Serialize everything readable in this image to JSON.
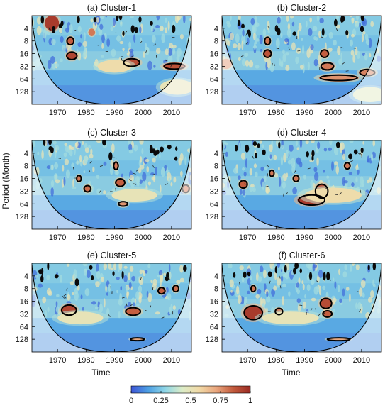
{
  "ylabel": "Period (Month)",
  "xlabel": "Time",
  "chart_data": [
    {
      "type": "heatmap",
      "title": "(a) Cluster-1",
      "x_ticks": [
        1970,
        1980,
        1990,
        2000,
        2010
      ],
      "y_ticks": [
        4,
        8,
        16,
        32,
        64,
        128
      ],
      "xlim": [
        1961,
        2017
      ],
      "ylim": [
        2,
        256
      ],
      "y_scale": "log2",
      "show_xlabel": false,
      "show_ylabel": false,
      "blobs": [
        {
          "x": 1968.0,
          "y": 3.0,
          "w": 2.5,
          "h": 0.6,
          "v": 0.95
        },
        {
          "x": 1974.5,
          "y": 8.0,
          "w": 1.4,
          "h": 0.35,
          "v": 0.85
        },
        {
          "x": 1982.0,
          "y": 5.0,
          "w": 1.2,
          "h": 0.3,
          "v": 0.8
        },
        {
          "x": 1975.0,
          "y": 18.0,
          "w": 2.0,
          "h": 0.35,
          "v": 0.92
        },
        {
          "x": 1996.0,
          "y": 26.0,
          "w": 3.0,
          "h": 0.35,
          "v": 0.9
        },
        {
          "x": 2011.0,
          "y": 32.0,
          "w": 4.0,
          "h": 0.3,
          "v": 0.88
        },
        {
          "x": 1990.0,
          "y": 32.0,
          "w": 6.0,
          "h": 0.5,
          "v": 0.55
        },
        {
          "x": 2012.0,
          "y": 100.0,
          "w": 6.0,
          "h": 0.6,
          "v": 0.5
        }
      ],
      "contours": [
        {
          "x": 1974.5,
          "y": 8.0,
          "w": 1.2,
          "h": 0.3
        },
        {
          "x": 1975.0,
          "y": 18.0,
          "w": 1.8,
          "h": 0.3
        },
        {
          "x": 1996.0,
          "y": 26.0,
          "w": 2.8,
          "h": 0.3
        },
        {
          "x": 2011.0,
          "y": 32.0,
          "w": 3.6,
          "h": 0.22
        }
      ]
    },
    {
      "type": "heatmap",
      "title": "(b) Cluster-2",
      "x_ticks": [
        1970,
        1980,
        1990,
        2000,
        2010
      ],
      "y_ticks": [
        4,
        8,
        16,
        32,
        64,
        128
      ],
      "xlim": [
        1961,
        2017
      ],
      "ylim": [
        2,
        256
      ],
      "y_scale": "log2",
      "show_xlabel": false,
      "show_ylabel": false,
      "blobs": [
        {
          "x": 1977.0,
          "y": 8.0,
          "w": 1.2,
          "h": 0.35,
          "v": 0.8
        },
        {
          "x": 1977.0,
          "y": 16.0,
          "w": 1.5,
          "h": 0.35,
          "v": 0.88
        },
        {
          "x": 1997.0,
          "y": 16.0,
          "w": 1.6,
          "h": 0.35,
          "v": 0.85
        },
        {
          "x": 1998.0,
          "y": 32.0,
          "w": 2.5,
          "h": 0.35,
          "v": 0.8
        },
        {
          "x": 2002.0,
          "y": 60.0,
          "w": 7.0,
          "h": 0.3,
          "v": 0.75
        },
        {
          "x": 2012.0,
          "y": 45.0,
          "w": 3.0,
          "h": 0.3,
          "v": 0.78
        },
        {
          "x": 1962.5,
          "y": 28.0,
          "w": 2.0,
          "h": 0.4,
          "v": 0.75
        },
        {
          "x": 2013.0,
          "y": 150.0,
          "w": 6.0,
          "h": 0.6,
          "v": 0.45
        }
      ],
      "contours": [
        {
          "x": 1977.0,
          "y": 8.0,
          "w": 1.0,
          "h": 0.3
        },
        {
          "x": 1977.0,
          "y": 16.0,
          "w": 1.3,
          "h": 0.3
        },
        {
          "x": 1997.0,
          "y": 16.0,
          "w": 1.4,
          "h": 0.3
        },
        {
          "x": 1998.0,
          "y": 32.0,
          "w": 2.2,
          "h": 0.28
        },
        {
          "x": 2002.0,
          "y": 60.0,
          "w": 6.5,
          "h": 0.22
        },
        {
          "x": 2012.0,
          "y": 45.0,
          "w": 2.6,
          "h": 0.25
        }
      ]
    },
    {
      "type": "heatmap",
      "title": "(c) Cluster-3",
      "x_ticks": [
        1970,
        1980,
        1990,
        2000,
        2010
      ],
      "y_ticks": [
        4,
        8,
        16,
        32,
        64,
        128
      ],
      "xlim": [
        1961,
        2017
      ],
      "ylim": [
        2,
        256
      ],
      "y_scale": "log2",
      "show_xlabel": false,
      "show_ylabel": true,
      "blobs": [
        {
          "x": 1977.5,
          "y": 16.0,
          "w": 1.0,
          "h": 0.3,
          "v": 0.8
        },
        {
          "x": 1980.5,
          "y": 28.0,
          "w": 1.4,
          "h": 0.3,
          "v": 0.82
        },
        {
          "x": 1990.5,
          "y": 8.0,
          "w": 1.0,
          "h": 0.35,
          "v": 0.8
        },
        {
          "x": 1992.0,
          "y": 20.0,
          "w": 1.8,
          "h": 0.35,
          "v": 0.85
        },
        {
          "x": 1993.0,
          "y": 64.0,
          "w": 1.8,
          "h": 0.25,
          "v": 0.75
        },
        {
          "x": 2015.0,
          "y": 28.0,
          "w": 1.6,
          "h": 0.35,
          "v": 0.8
        },
        {
          "x": 1997.0,
          "y": 40.0,
          "w": 8.0,
          "h": 0.5,
          "v": 0.5
        }
      ],
      "contours": [
        {
          "x": 1977.5,
          "y": 16.0,
          "w": 0.8,
          "h": 0.25
        },
        {
          "x": 1980.5,
          "y": 28.0,
          "w": 1.2,
          "h": 0.25
        },
        {
          "x": 1990.5,
          "y": 8.0,
          "w": 0.8,
          "h": 0.3
        },
        {
          "x": 1992.0,
          "y": 20.0,
          "w": 1.6,
          "h": 0.3
        },
        {
          "x": 1993.0,
          "y": 64.0,
          "w": 1.6,
          "h": 0.18
        },
        {
          "x": 2015.0,
          "y": 28.0,
          "w": 1.2,
          "h": 0.3
        }
      ]
    },
    {
      "type": "heatmap",
      "title": "(d) Cluster-4",
      "x_ticks": [
        1970,
        1980,
        1990,
        2000,
        2010
      ],
      "y_ticks": [
        4,
        8,
        16,
        32,
        64,
        128
      ],
      "xlim": [
        1961,
        2017
      ],
      "ylim": [
        2,
        256
      ],
      "y_scale": "log2",
      "show_xlabel": false,
      "show_ylabel": false,
      "blobs": [
        {
          "x": 1968.5,
          "y": 22.0,
          "w": 1.6,
          "h": 0.35,
          "v": 0.85
        },
        {
          "x": 1978.5,
          "y": 12.0,
          "w": 1.0,
          "h": 0.3,
          "v": 0.8
        },
        {
          "x": 1987.0,
          "y": 16.0,
          "w": 1.2,
          "h": 0.3,
          "v": 0.8
        },
        {
          "x": 1992.5,
          "y": 52.0,
          "w": 5.0,
          "h": 0.45,
          "v": 0.95
        },
        {
          "x": 1996.0,
          "y": 32.0,
          "w": 2.5,
          "h": 0.6,
          "v": 0.9
        },
        {
          "x": 2005.0,
          "y": 8.0,
          "w": 1.2,
          "h": 0.3,
          "v": 0.8
        },
        {
          "x": 2000.0,
          "y": 40.0,
          "w": 10.0,
          "h": 0.6,
          "v": 0.55
        }
      ],
      "contours": [
        {
          "x": 1968.5,
          "y": 22.0,
          "w": 1.4,
          "h": 0.3
        },
        {
          "x": 1978.5,
          "y": 12.0,
          "w": 0.8,
          "h": 0.25
        },
        {
          "x": 1987.0,
          "y": 16.0,
          "w": 1.0,
          "h": 0.25
        },
        {
          "x": 1992.5,
          "y": 52.0,
          "w": 4.6,
          "h": 0.4
        },
        {
          "x": 1996.0,
          "y": 32.0,
          "w": 2.2,
          "h": 0.55
        },
        {
          "x": 2005.0,
          "y": 8.0,
          "w": 1.0,
          "h": 0.25
        }
      ]
    },
    {
      "type": "heatmap",
      "title": "(e) Cluster-5",
      "x_ticks": [
        1970,
        1980,
        1990,
        2000,
        2010
      ],
      "y_ticks": [
        4,
        8,
        16,
        32,
        64,
        128
      ],
      "xlim": [
        1961,
        2017
      ],
      "ylim": [
        2,
        256
      ],
      "y_scale": "log2",
      "show_xlabel": true,
      "show_ylabel": false,
      "blobs": [
        {
          "x": 1974.0,
          "y": 26.0,
          "w": 2.8,
          "h": 0.45,
          "v": 0.92
        },
        {
          "x": 1996.5,
          "y": 28.0,
          "w": 2.8,
          "h": 0.35,
          "v": 0.85
        },
        {
          "x": 2006.5,
          "y": 9.0,
          "w": 1.4,
          "h": 0.3,
          "v": 0.85
        },
        {
          "x": 2011.5,
          "y": 8.0,
          "w": 1.2,
          "h": 0.3,
          "v": 0.82
        },
        {
          "x": 1998.0,
          "y": 128.0,
          "w": 2.5,
          "h": 0.12,
          "v": 0.7
        },
        {
          "x": 1978.0,
          "y": 40.0,
          "w": 8.0,
          "h": 0.5,
          "v": 0.5
        }
      ],
      "contours": [
        {
          "x": 1974.0,
          "y": 26.0,
          "w": 2.6,
          "h": 0.4
        },
        {
          "x": 1996.5,
          "y": 28.0,
          "w": 2.6,
          "h": 0.3
        },
        {
          "x": 2006.5,
          "y": 9.0,
          "w": 1.2,
          "h": 0.25
        },
        {
          "x": 2011.5,
          "y": 8.0,
          "w": 1.0,
          "h": 0.25
        },
        {
          "x": 1998.0,
          "y": 128.0,
          "w": 2.4,
          "h": 0.08
        }
      ]
    },
    {
      "type": "heatmap",
      "title": "(f) Cluster-6",
      "x_ticks": [
        1970,
        1980,
        1990,
        2000,
        2010
      ],
      "y_ticks": [
        4,
        8,
        16,
        32,
        64,
        128
      ],
      "xlim": [
        1961,
        2017
      ],
      "ylim": [
        2,
        256
      ],
      "y_scale": "log2",
      "show_xlabel": true,
      "show_ylabel": false,
      "blobs": [
        {
          "x": 1972.0,
          "y": 30.0,
          "w": 3.5,
          "h": 0.6,
          "v": 0.95
        },
        {
          "x": 1981.0,
          "y": 28.0,
          "w": 1.5,
          "h": 0.3,
          "v": 0.8
        },
        {
          "x": 1997.5,
          "y": 18.0,
          "w": 2.2,
          "h": 0.45,
          "v": 0.9
        },
        {
          "x": 1998.0,
          "y": 32.0,
          "w": 1.8,
          "h": 0.3,
          "v": 0.85
        },
        {
          "x": 2002.0,
          "y": 128.0,
          "w": 4.0,
          "h": 0.12,
          "v": 0.7
        },
        {
          "x": 1972.0,
          "y": 8.0,
          "w": 1.0,
          "h": 0.3,
          "v": 0.8
        },
        {
          "x": 1985.0,
          "y": 40.0,
          "w": 10.0,
          "h": 0.5,
          "v": 0.5
        }
      ],
      "contours": [
        {
          "x": 1972.0,
          "y": 30.0,
          "w": 3.2,
          "h": 0.55
        },
        {
          "x": 1981.0,
          "y": 28.0,
          "w": 1.3,
          "h": 0.25
        },
        {
          "x": 1997.5,
          "y": 18.0,
          "w": 2.0,
          "h": 0.4
        },
        {
          "x": 1998.0,
          "y": 32.0,
          "w": 1.6,
          "h": 0.25
        },
        {
          "x": 2002.0,
          "y": 128.0,
          "w": 4.0,
          "h": 0.08
        },
        {
          "x": 1972.0,
          "y": 8.0,
          "w": 0.8,
          "h": 0.25
        }
      ]
    }
  ],
  "colorbar": {
    "ticks": [
      0,
      0.25,
      0.5,
      0.75,
      1
    ],
    "tick_labels": [
      "0",
      "0.25",
      "0.5",
      "0.75",
      "1"
    ],
    "colors": [
      "#3d55d6",
      "#4d9fe3",
      "#8fd6e6",
      "#dcecc7",
      "#f1d9a6",
      "#e9a67e",
      "#c25a3c",
      "#9a2b24"
    ]
  }
}
